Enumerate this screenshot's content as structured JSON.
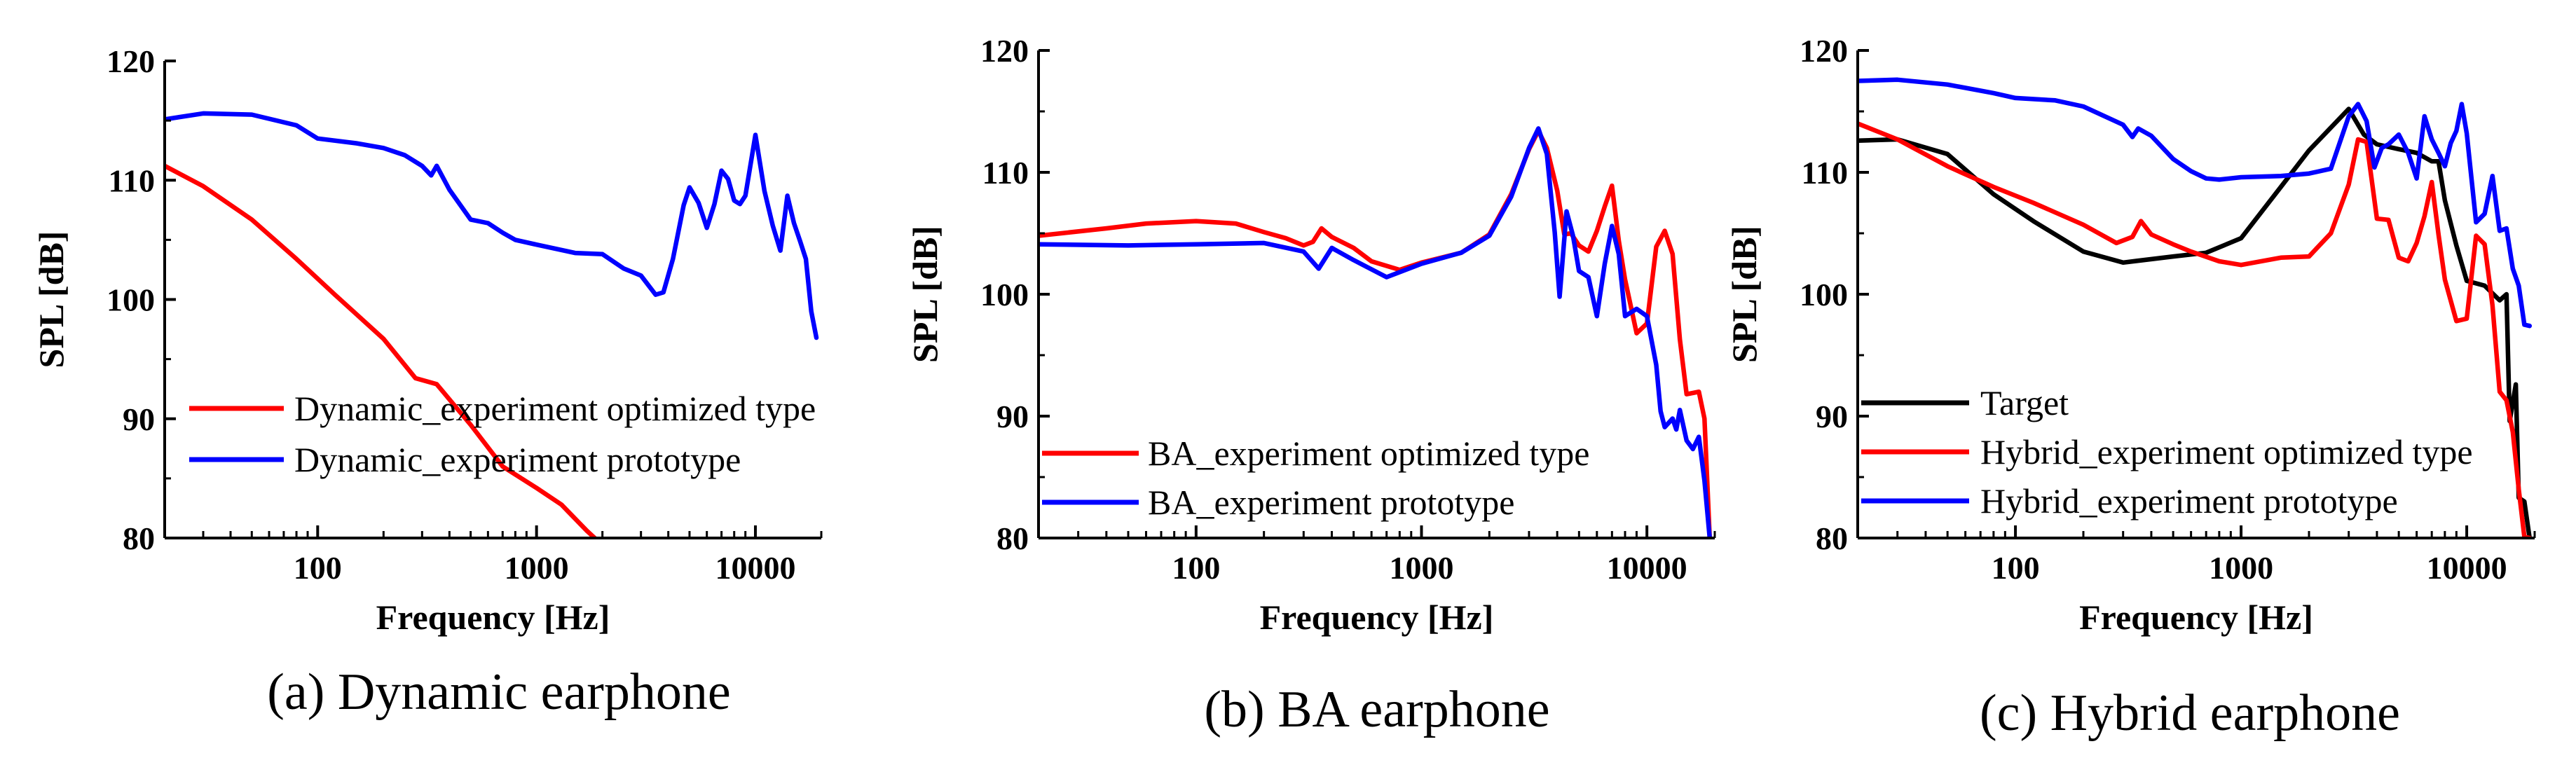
{
  "chart_data": [
    {
      "type": "line",
      "panel": "a",
      "caption": "(a) Dynamic earphone",
      "xlabel": "Frequency [Hz]",
      "ylabel": "SPL [dB]",
      "xscale": "log",
      "xlim": [
        20,
        20000
      ],
      "ylim": [
        80,
        120
      ],
      "xticks": [
        100,
        1000,
        10000
      ],
      "xtick_labels": [
        "100",
        "1000",
        "10000"
      ],
      "yticks": [
        80,
        90,
        100,
        110,
        120
      ],
      "ytick_labels": [
        "80",
        "90",
        "100",
        "110",
        "120"
      ],
      "legend_position": "center-left",
      "series": [
        {
          "name": "Dynamic_experiment optimized type",
          "color": "#ff0000",
          "x": [
            20,
            30,
            50,
            80,
            120,
            200,
            280,
            350,
            500,
            700,
            1000,
            1300,
            1700,
            2000
          ],
          "y": [
            111.2,
            109.5,
            106.7,
            103.4,
            100.4,
            96.7,
            93.4,
            92.9,
            89.5,
            86.0,
            84.2,
            82.8,
            80.6,
            79.4
          ]
        },
        {
          "name": "Dynamic_experiment prototype",
          "color": "#0000ff",
          "x": [
            20,
            30,
            50,
            80,
            100,
            150,
            200,
            250,
            300,
            330,
            350,
            400,
            500,
            600,
            700,
            800,
            1000,
            1500,
            2000,
            2500,
            3000,
            3500,
            3800,
            4200,
            4700,
            5000,
            5500,
            6000,
            6500,
            7000,
            7500,
            8000,
            8500,
            9000,
            10000,
            11000,
            12000,
            13000,
            14000,
            15000,
            16000,
            17000,
            18000,
            19000
          ],
          "y": [
            115.1,
            115.6,
            115.5,
            114.6,
            113.5,
            113.1,
            112.7,
            112.1,
            111.2,
            110.4,
            111.2,
            109.2,
            106.7,
            106.4,
            105.6,
            105.0,
            104.6,
            103.9,
            103.8,
            102.6,
            102.0,
            100.4,
            100.6,
            103.4,
            107.9,
            109.4,
            108.1,
            106.0,
            108.0,
            110.8,
            110.1,
            108.3,
            108.0,
            108.7,
            113.8,
            109.1,
            106.2,
            104.1,
            108.7,
            106.4,
            104.9,
            103.4,
            99.0,
            96.8
          ]
        }
      ]
    },
    {
      "type": "line",
      "panel": "b",
      "caption": "(b) BA earphone",
      "xlabel": "Frequency [Hz]",
      "ylabel": "SPL [dB]",
      "xscale": "log",
      "xlim": [
        20,
        20000
      ],
      "ylim": [
        80,
        120
      ],
      "xticks": [
        100,
        1000,
        10000
      ],
      "xtick_labels": [
        "100",
        "1000",
        "10000"
      ],
      "yticks": [
        80,
        90,
        100,
        110,
        120
      ],
      "ytick_labels": [
        "80",
        "90",
        "100",
        "110",
        "120"
      ],
      "legend_position": "bottom-left",
      "series": [
        {
          "name": "BA_experiment optimized type",
          "color": "#ff0000",
          "x": [
            20,
            40,
            60,
            100,
            150,
            200,
            250,
            300,
            330,
            360,
            400,
            500,
            600,
            800,
            1000,
            1500,
            2000,
            2500,
            3000,
            3300,
            3600,
            4000,
            4300,
            4600,
            5000,
            5500,
            6000,
            6500,
            7000,
            7500,
            8000,
            9000,
            10000,
            11000,
            12000,
            13000,
            14000,
            15000,
            16000,
            17000,
            18000,
            19000
          ],
          "y": [
            104.8,
            105.4,
            105.8,
            106.0,
            105.8,
            105.1,
            104.6,
            104.0,
            104.3,
            105.4,
            104.7,
            103.8,
            102.7,
            102.0,
            102.6,
            103.4,
            104.9,
            108.2,
            111.9,
            113.4,
            112.0,
            108.5,
            104.9,
            105.0,
            104.0,
            103.5,
            105.2,
            107.2,
            108.9,
            104.4,
            101.2,
            96.8,
            97.6,
            103.9,
            105.2,
            103.3,
            96.3,
            91.8,
            91.9,
            92.0,
            89.8,
            80.0
          ]
        },
        {
          "name": "BA_experiment prototype",
          "color": "#0000ff",
          "x": [
            20,
            50,
            100,
            200,
            300,
            350,
            400,
            500,
            700,
            1000,
            1500,
            2000,
            2500,
            3000,
            3300,
            3600,
            3900,
            4100,
            4400,
            4700,
            5000,
            5500,
            6000,
            6500,
            7000,
            7500,
            8000,
            9000,
            10000,
            11000,
            11500,
            12000,
            13000,
            13500,
            14000,
            15000,
            16000,
            17000,
            18000,
            19000
          ],
          "y": [
            104.1,
            104.0,
            104.1,
            104.2,
            103.5,
            102.1,
            103.8,
            102.8,
            101.4,
            102.5,
            103.4,
            104.8,
            108.0,
            112.0,
            113.6,
            111.5,
            105.1,
            99.8,
            106.8,
            104.8,
            101.9,
            101.4,
            98.2,
            102.5,
            105.6,
            103.3,
            98.2,
            98.8,
            98.2,
            94.2,
            90.4,
            89.1,
            89.8,
            88.9,
            90.5,
            88.0,
            87.3,
            88.3,
            84.7,
            80.0
          ]
        }
      ]
    },
    {
      "type": "line",
      "panel": "c",
      "caption": "(c) Hybrid earphone",
      "xlabel": "Frequency [Hz]",
      "ylabel": "SPL [dB]",
      "xscale": "log",
      "xlim": [
        20,
        20000
      ],
      "ylim": [
        80,
        120
      ],
      "xticks": [
        100,
        1000,
        10000
      ],
      "xtick_labels": [
        "100",
        "1000",
        "10000"
      ],
      "yticks": [
        80,
        90,
        100,
        110,
        120
      ],
      "ytick_labels": [
        "80",
        "90",
        "100",
        "110",
        "120"
      ],
      "legend_position": "bottom-left",
      "series": [
        {
          "name": "Target",
          "color": "#000000",
          "x": [
            20,
            30,
            50,
            80,
            120,
            200,
            300,
            500,
            700,
            1000,
            1500,
            2000,
            3000,
            3500,
            4000,
            5000,
            6000,
            7000,
            7500,
            8000,
            9000,
            10000,
            12000,
            14000,
            15000,
            15500,
            16500,
            17000,
            18000,
            19000
          ],
          "y": [
            112.6,
            112.7,
            111.5,
            108.2,
            106.0,
            103.5,
            102.6,
            103.1,
            103.4,
            104.6,
            108.8,
            111.8,
            115.2,
            113.1,
            112.3,
            111.9,
            111.6,
            110.9,
            110.9,
            107.7,
            104.0,
            101.1,
            100.7,
            99.5,
            100.0,
            89.6,
            92.6,
            83.3,
            83.0,
            80.0
          ]
        },
        {
          "name": "Hybrid_experiment optimized type",
          "color": "#ff0000",
          "x": [
            20,
            30,
            50,
            80,
            120,
            200,
            280,
            330,
            360,
            400,
            500,
            600,
            800,
            1000,
            1500,
            2000,
            2500,
            3000,
            3300,
            3600,
            4000,
            4500,
            5000,
            5500,
            6000,
            6500,
            7000,
            7500,
            8000,
            9000,
            10000,
            11000,
            12000,
            13000,
            14000,
            15000,
            16000,
            17000,
            18000,
            19000
          ],
          "y": [
            114.0,
            112.7,
            110.5,
            108.8,
            107.5,
            105.7,
            104.2,
            104.7,
            106.0,
            104.9,
            104.1,
            103.5,
            102.7,
            102.4,
            103.0,
            103.1,
            105.0,
            109.0,
            112.7,
            112.5,
            106.2,
            106.1,
            103.0,
            102.7,
            104.2,
            106.4,
            109.2,
            104.9,
            101.2,
            97.8,
            98.0,
            104.8,
            104.1,
            99.1,
            92.0,
            91.3,
            88.7,
            84.0,
            80.1,
            80.0
          ]
        },
        {
          "name": "Hybrid_experiment prototype",
          "color": "#0000ff",
          "x": [
            20,
            30,
            50,
            80,
            100,
            150,
            200,
            300,
            330,
            350,
            400,
            500,
            600,
            700,
            800,
            1000,
            1500,
            2000,
            2500,
            3000,
            3300,
            3600,
            3900,
            4200,
            4500,
            5000,
            5500,
            6000,
            6500,
            7000,
            7500,
            8000,
            8500,
            9000,
            9500,
            10000,
            11000,
            12000,
            13000,
            14000,
            15000,
            16000,
            17000,
            18000,
            19000
          ],
          "y": [
            117.5,
            117.6,
            117.2,
            116.5,
            116.1,
            115.9,
            115.4,
            113.9,
            112.9,
            113.6,
            113.0,
            111.1,
            110.1,
            109.5,
            109.4,
            109.6,
            109.7,
            109.9,
            110.3,
            114.6,
            115.6,
            114.2,
            110.4,
            112.0,
            112.3,
            113.1,
            111.6,
            109.5,
            114.6,
            112.7,
            111.6,
            110.5,
            112.4,
            113.4,
            115.6,
            113.2,
            105.9,
            106.6,
            109.7,
            105.2,
            105.4,
            102.1,
            100.7,
            97.5,
            97.4
          ]
        }
      ]
    }
  ]
}
